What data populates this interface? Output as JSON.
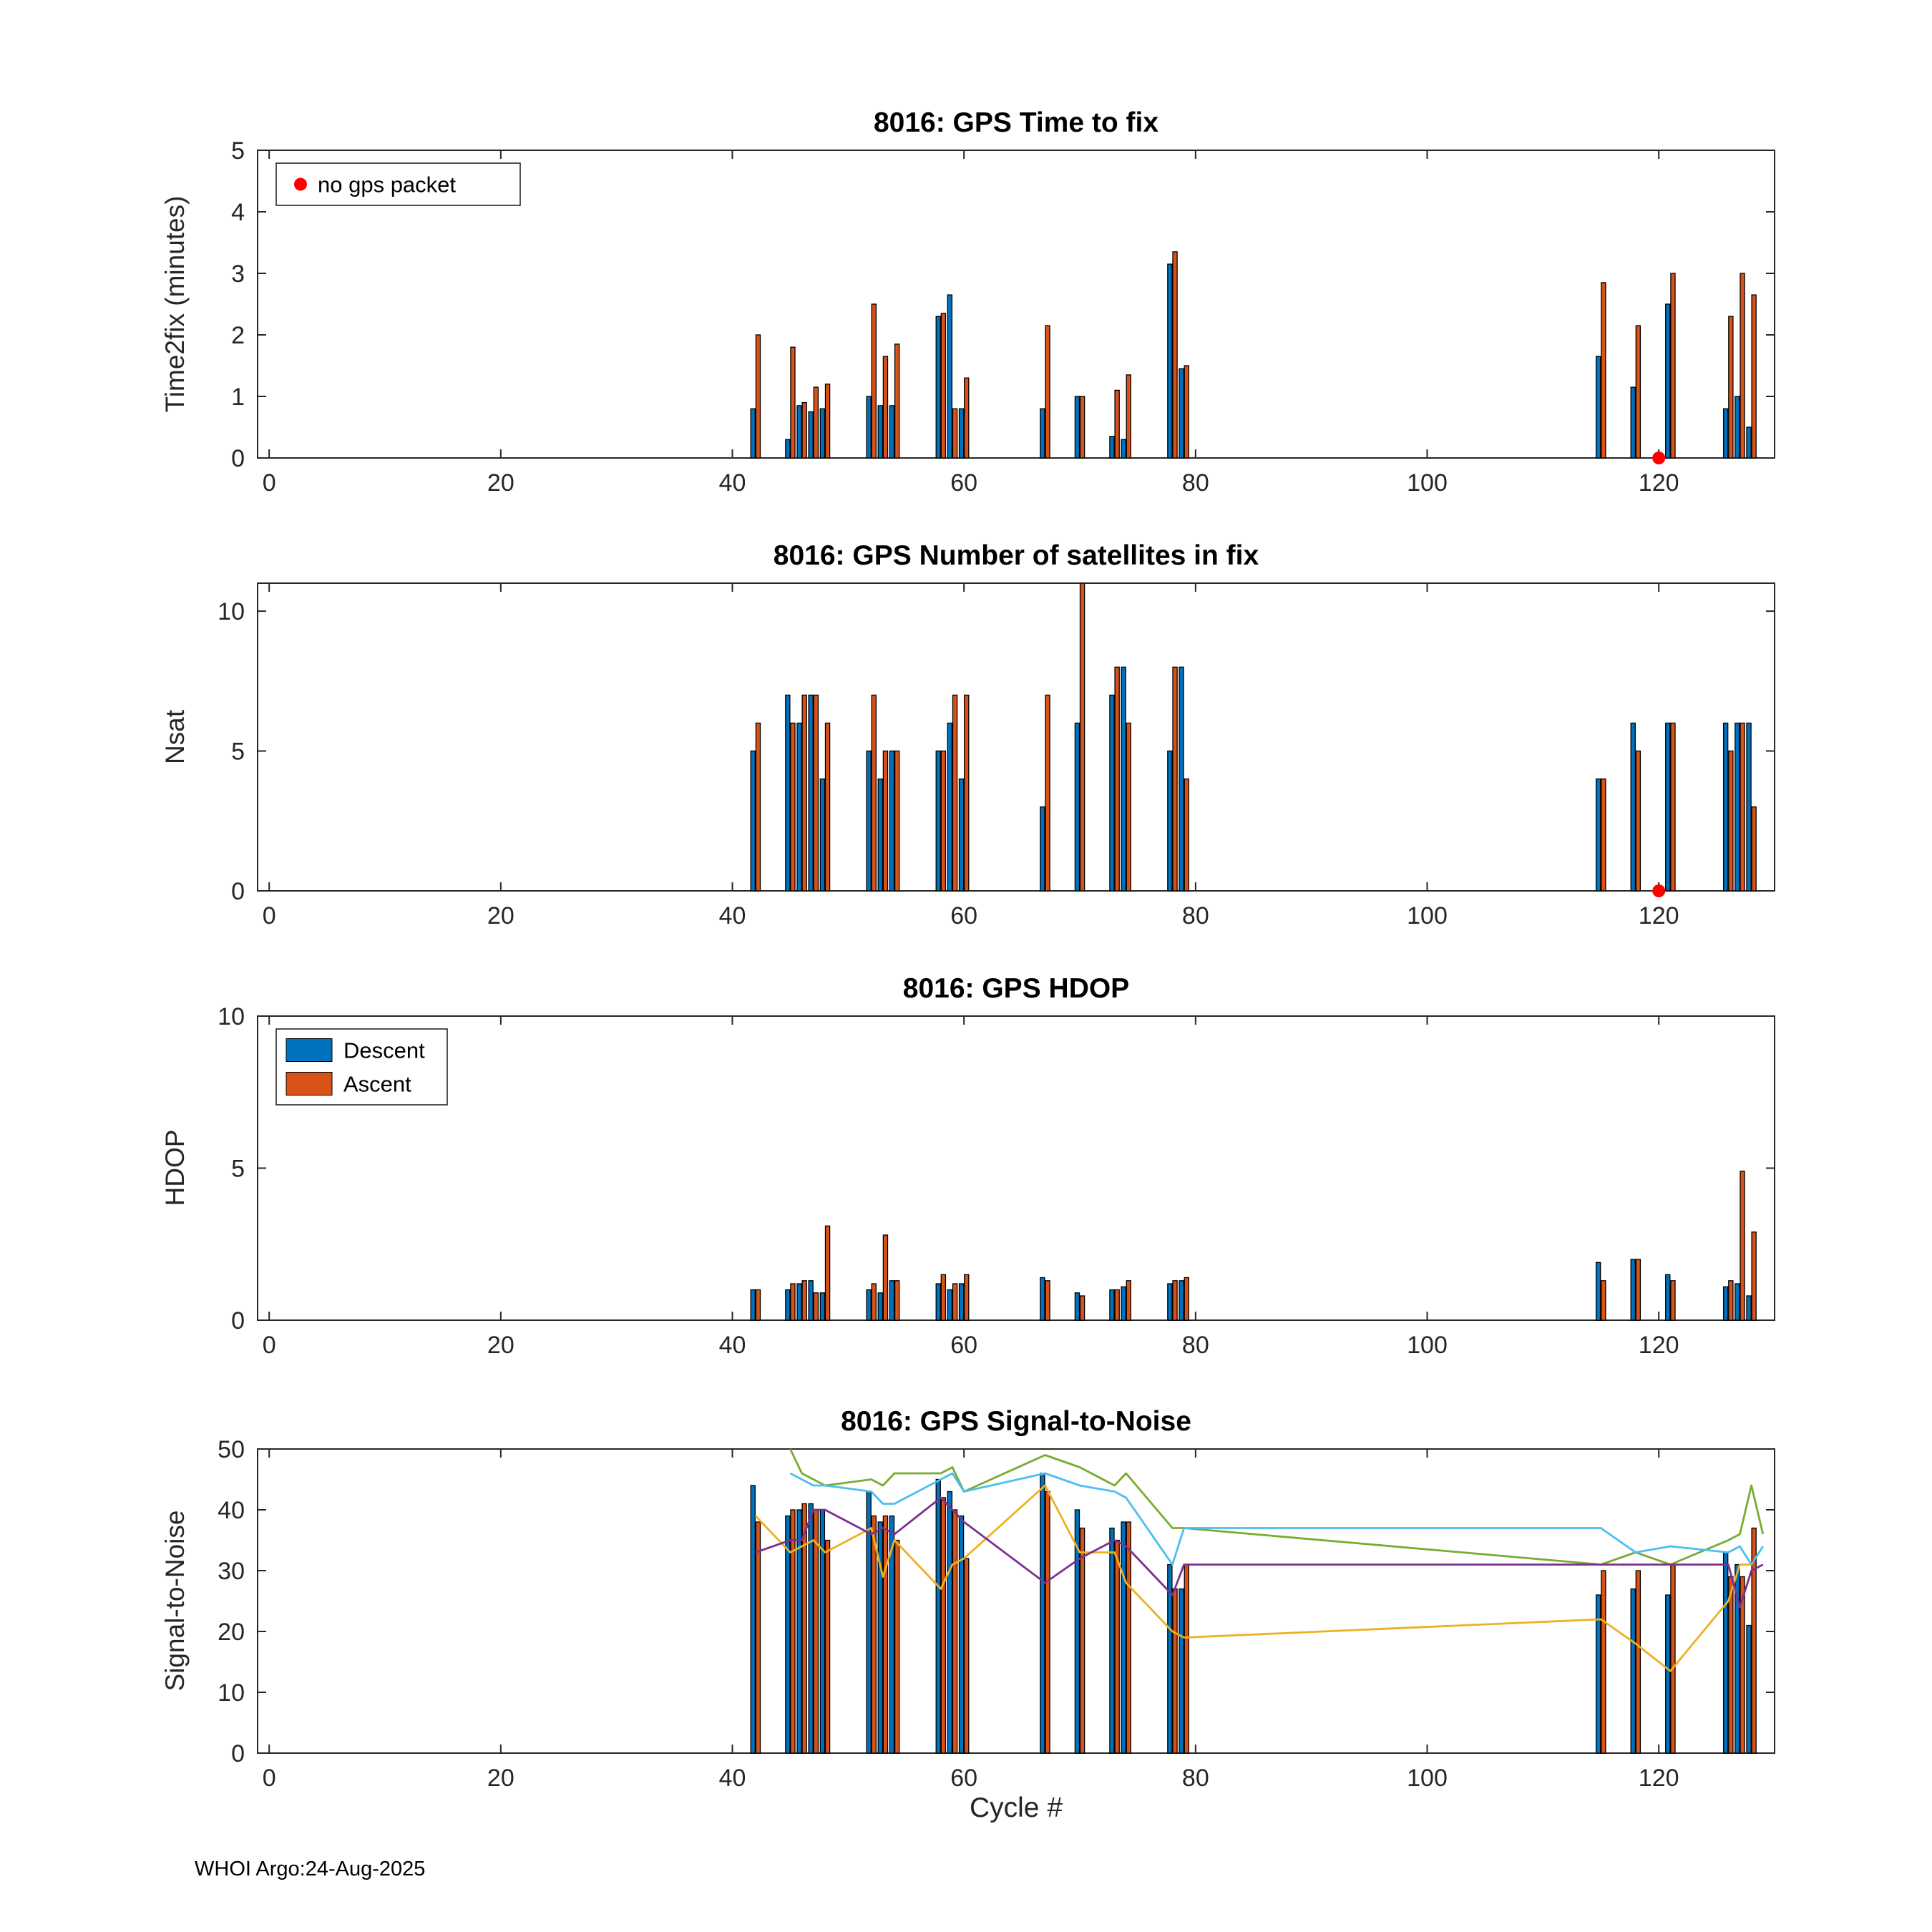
{
  "figure": {
    "xlabel": "Cycle #",
    "footer": "WHOI Argo:24-Aug-2025",
    "colors": {
      "descent": "#0072BD",
      "ascent": "#D95319",
      "no_gps_marker": "#FF0000",
      "line_green": "#77AC30",
      "line_cyan": "#4DBEEE",
      "line_yellow": "#EDB120",
      "line_purple": "#7E2F8E"
    }
  },
  "chart_data": [
    {
      "type": "bar",
      "title": "8016: GPS Time to fix",
      "ylabel": "Time2fix (minutes)",
      "xlim": [
        -1,
        130
      ],
      "ylim": [
        0,
        5
      ],
      "xticks": [
        0,
        20,
        40,
        60,
        80,
        100,
        120
      ],
      "yticks": [
        0,
        1,
        2,
        3,
        4,
        5
      ],
      "grid": false,
      "legend": {
        "position": "top-left",
        "entries": [
          {
            "label": "no gps packet",
            "type": "dot",
            "color": "#FF0000"
          }
        ]
      },
      "categories": [
        42,
        45,
        46,
        47,
        48,
        52,
        53,
        54,
        58,
        59,
        60,
        67,
        70,
        73,
        74,
        78,
        79,
        115,
        118,
        121,
        126,
        127,
        128
      ],
      "series": [
        {
          "name": "Descent",
          "color": "#0072BD",
          "values": [
            0.8,
            0.3,
            0.85,
            0.75,
            0.8,
            1.0,
            0.85,
            0.85,
            2.3,
            2.65,
            0.8,
            0.8,
            1.0,
            0.35,
            0.3,
            3.15,
            1.45,
            1.65,
            1.15,
            2.5,
            0.8,
            1.0,
            0.5
          ]
        },
        {
          "name": "Ascent",
          "color": "#D95319",
          "values": [
            2.0,
            1.8,
            0.9,
            1.15,
            1.2,
            2.5,
            1.65,
            1.85,
            2.35,
            0.8,
            1.3,
            2.15,
            1.0,
            1.1,
            1.35,
            3.35,
            1.5,
            2.85,
            2.15,
            3.0,
            2.3,
            3.0,
            2.65
          ]
        }
      ],
      "no_gps_markers": [
        [
          120,
          0
        ]
      ],
      "marker_color": "#FF0000"
    },
    {
      "type": "bar",
      "title": "8016: GPS Number of satellites in fix",
      "ylabel": "Nsat",
      "xlim": [
        -1,
        130
      ],
      "ylim": [
        0,
        11
      ],
      "xticks": [
        0,
        20,
        40,
        60,
        80,
        100,
        120
      ],
      "yticks": [
        0,
        5,
        10
      ],
      "grid": false,
      "categories": [
        42,
        45,
        46,
        47,
        48,
        52,
        53,
        54,
        58,
        59,
        60,
        67,
        70,
        73,
        74,
        78,
        79,
        115,
        118,
        121,
        126,
        127,
        128
      ],
      "series": [
        {
          "name": "Descent",
          "color": "#0072BD",
          "values": [
            5,
            7,
            6,
            7,
            4,
            5,
            4,
            5,
            5,
            6,
            4,
            3,
            6,
            7,
            8,
            5,
            8,
            4,
            6,
            6,
            6,
            6,
            6
          ]
        },
        {
          "name": "Ascent",
          "color": "#D95319",
          "values": [
            6,
            6,
            7,
            7,
            6,
            7,
            5,
            5,
            5,
            7,
            7,
            7,
            11,
            8,
            6,
            8,
            4,
            4,
            5,
            6,
            5,
            6,
            3
          ]
        }
      ],
      "no_gps_markers": [
        [
          120,
          0
        ]
      ],
      "marker_color": "#FF0000"
    },
    {
      "type": "bar",
      "title": "8016: GPS HDOP",
      "ylabel": "HDOP",
      "xlim": [
        -1,
        130
      ],
      "ylim": [
        0,
        10
      ],
      "xticks": [
        0,
        20,
        40,
        60,
        80,
        100,
        120
      ],
      "yticks": [
        0,
        5,
        10
      ],
      "grid": false,
      "legend": {
        "position": "top-left",
        "entries": [
          {
            "label": "Descent",
            "type": "patch",
            "color": "#0072BD"
          },
          {
            "label": "Ascent",
            "type": "patch",
            "color": "#D95319"
          }
        ]
      },
      "categories": [
        42,
        45,
        46,
        47,
        48,
        52,
        53,
        54,
        58,
        59,
        60,
        67,
        70,
        73,
        74,
        78,
        79,
        115,
        118,
        121,
        126,
        127,
        128
      ],
      "series": [
        {
          "name": "Descent",
          "color": "#0072BD",
          "values": [
            1.0,
            1.0,
            1.2,
            1.3,
            0.9,
            1.0,
            0.9,
            1.3,
            1.2,
            1.0,
            1.2,
            1.4,
            0.9,
            1.0,
            1.1,
            1.2,
            1.3,
            1.9,
            2.0,
            1.5,
            1.1,
            1.2,
            0.8
          ]
        },
        {
          "name": "Ascent",
          "color": "#D95319",
          "values": [
            1.0,
            1.2,
            1.3,
            0.9,
            3.1,
            1.2,
            2.8,
            1.3,
            1.5,
            1.2,
            1.5,
            1.3,
            0.8,
            1.0,
            1.3,
            1.3,
            1.4,
            1.3,
            2.0,
            1.3,
            1.3,
            4.9,
            2.9
          ]
        }
      ]
    },
    {
      "type": "bar",
      "title": "8016: GPS Signal-to-Noise",
      "ylabel": "Signal-to-Noise",
      "xlim": [
        -1,
        130
      ],
      "ylim": [
        0,
        50
      ],
      "xticks": [
        0,
        20,
        40,
        60,
        80,
        100,
        120
      ],
      "yticks": [
        0,
        10,
        20,
        30,
        40,
        50
      ],
      "grid": false,
      "categories": [
        42,
        45,
        46,
        47,
        48,
        52,
        53,
        54,
        58,
        59,
        60,
        67,
        70,
        73,
        74,
        78,
        79,
        115,
        118,
        121,
        126,
        127,
        128
      ],
      "series": [
        {
          "name": "Descent",
          "color": "#0072BD",
          "values": [
            44,
            39,
            40,
            41,
            40,
            43,
            38,
            39,
            45,
            43,
            39,
            46,
            40,
            37,
            38,
            31,
            27,
            26,
            27,
            26,
            33,
            31,
            21
          ]
        },
        {
          "name": "Ascent",
          "color": "#D95319",
          "values": [
            38,
            40,
            41,
            40,
            35,
            39,
            39,
            35,
            42,
            40,
            32,
            43,
            37,
            35,
            38,
            27,
            31,
            30,
            30,
            31,
            29,
            29,
            37
          ]
        }
      ],
      "lines": [
        {
          "name": "line-green",
          "color": "#77AC30",
          "points": [
            [
              45,
              50
            ],
            [
              46,
              46
            ],
            [
              47,
              45
            ],
            [
              48,
              44
            ],
            [
              52,
              45
            ],
            [
              53,
              44
            ],
            [
              54,
              46
            ],
            [
              58,
              46
            ],
            [
              59,
              47
            ],
            [
              60,
              43
            ],
            [
              67,
              49
            ],
            [
              70,
              47
            ],
            [
              73,
              44
            ],
            [
              74,
              46
            ],
            [
              78,
              37
            ],
            [
              79,
              37
            ],
            [
              115,
              31
            ],
            [
              118,
              33
            ],
            [
              121,
              31
            ],
            [
              126,
              35
            ],
            [
              127,
              36
            ],
            [
              128,
              44
            ],
            [
              129,
              36
            ]
          ]
        },
        {
          "name": "line-cyan",
          "color": "#4DBEEE",
          "points": [
            [
              45,
              46
            ],
            [
              46,
              45
            ],
            [
              47,
              44
            ],
            [
              48,
              44
            ],
            [
              52,
              43
            ],
            [
              53,
              41
            ],
            [
              54,
              41
            ],
            [
              58,
              45
            ],
            [
              59,
              46
            ],
            [
              60,
              43
            ],
            [
              67,
              46
            ],
            [
              70,
              44
            ],
            [
              73,
              43
            ],
            [
              74,
              42
            ],
            [
              78,
              31
            ],
            [
              79,
              37
            ],
            [
              115,
              37
            ],
            [
              118,
              33
            ],
            [
              121,
              34
            ],
            [
              126,
              33
            ],
            [
              127,
              34
            ],
            [
              128,
              31
            ],
            [
              129,
              34
            ]
          ]
        },
        {
          "name": "line-yellow",
          "color": "#EDB120",
          "points": [
            [
              42,
              39
            ],
            [
              45,
              33
            ],
            [
              46,
              34
            ],
            [
              47,
              35
            ],
            [
              48,
              33
            ],
            [
              52,
              37
            ],
            [
              53,
              29
            ],
            [
              54,
              35
            ],
            [
              58,
              27
            ],
            [
              59,
              31
            ],
            [
              60,
              32
            ],
            [
              67,
              44
            ],
            [
              70,
              33
            ],
            [
              73,
              33
            ],
            [
              74,
              28
            ],
            [
              78,
              20
            ],
            [
              79,
              19
            ],
            [
              115,
              22
            ],
            [
              118,
              18
            ],
            [
              121,
              13.5
            ],
            [
              126,
              25
            ],
            [
              127,
              31
            ],
            [
              128,
              31
            ]
          ]
        },
        {
          "name": "line-purple",
          "color": "#7E2F8E",
          "points": [
            [
              42,
              33
            ],
            [
              45,
              35
            ],
            [
              46,
              35
            ],
            [
              47,
              40
            ],
            [
              48,
              40
            ],
            [
              52,
              36
            ],
            [
              53,
              37
            ],
            [
              54,
              36
            ],
            [
              58,
              42
            ],
            [
              59,
              40
            ],
            [
              60,
              38
            ],
            [
              67,
              28
            ],
            [
              70,
              32
            ],
            [
              73,
              35
            ],
            [
              74,
              34
            ],
            [
              78,
              26
            ],
            [
              79,
              31
            ],
            [
              115,
              31
            ],
            [
              118,
              31
            ],
            [
              121,
              31
            ],
            [
              126,
              31
            ],
            [
              127,
              24
            ],
            [
              128,
              30
            ],
            [
              129,
              31
            ]
          ]
        }
      ]
    }
  ]
}
